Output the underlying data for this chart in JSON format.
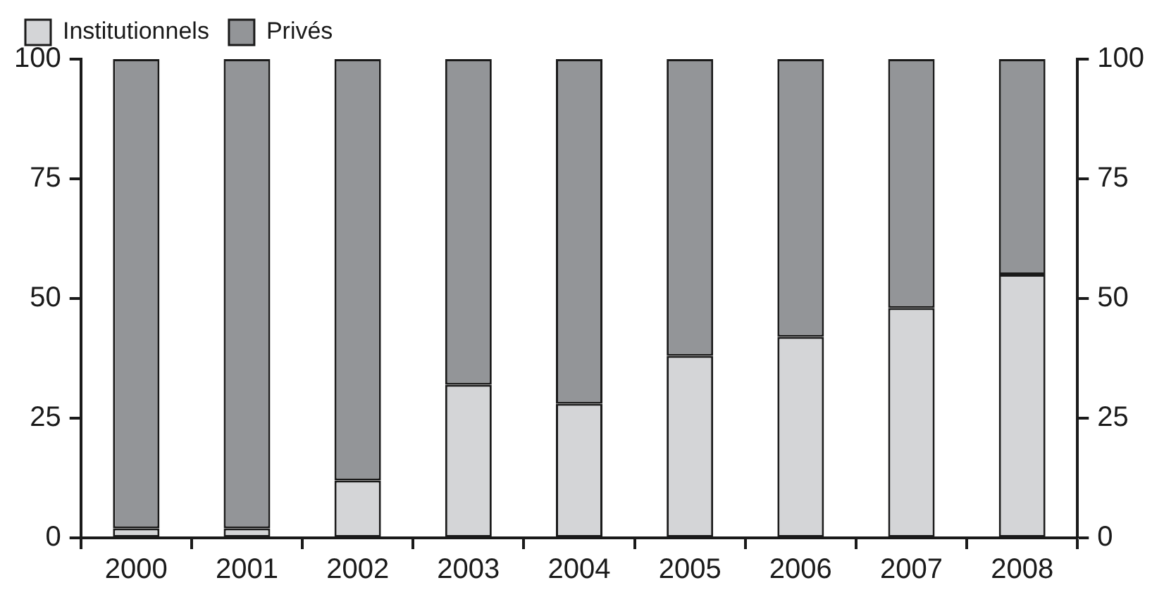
{
  "chart_data": {
    "type": "bar",
    "stacked": true,
    "categories": [
      "2000",
      "2001",
      "2002",
      "2003",
      "2004",
      "2005",
      "2006",
      "2007",
      "2008"
    ],
    "series": [
      {
        "name": "Institutionnels",
        "color": "#d4d5d7",
        "values": [
          2,
          2,
          12,
          32,
          28,
          38,
          42,
          48,
          55
        ]
      },
      {
        "name": "Privés",
        "color": "#939598",
        "values": [
          98,
          98,
          88,
          68,
          72,
          62,
          58,
          52,
          45
        ]
      }
    ],
    "ylim": [
      0,
      100
    ],
    "yticks": [
      0,
      25,
      50,
      75,
      100
    ],
    "y2lim": [
      0,
      100
    ],
    "y2ticks": [
      0,
      25,
      50,
      75,
      100
    ],
    "grid": false,
    "legend": "top left"
  }
}
